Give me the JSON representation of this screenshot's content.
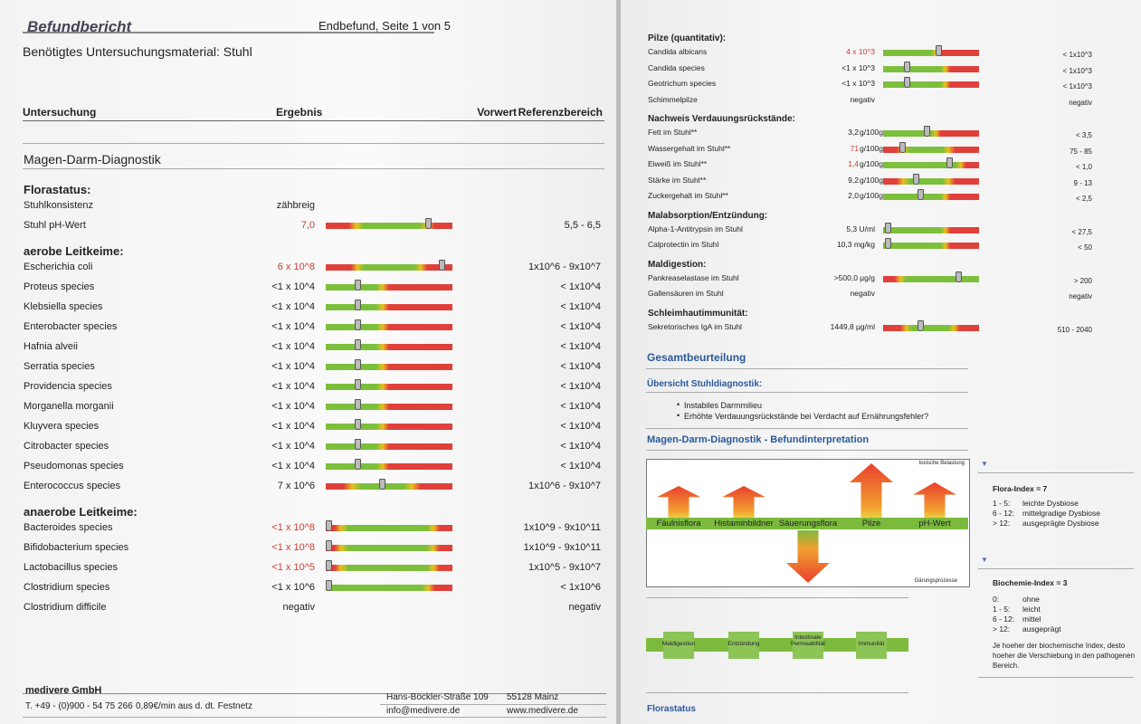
{
  "page1": {
    "header": {
      "title": "Befundbericht",
      "page": "Endbefund, Seite 1 von 5"
    },
    "material": "Benötigtes Untersuchungsmaterial: Stuhl",
    "columns": [
      "Untersuchung",
      "Ergebnis",
      "Vorwert",
      "Referenzbereich"
    ],
    "section": "Magen-Darm-Diagnostik",
    "groups": [
      {
        "title": "Florastatus:",
        "rows": [
          {
            "name": "Stuhlkonsistenz",
            "result": "zähbreig"
          },
          {
            "name": "Stuhl pH-Wert",
            "result": "7,0",
            "flag": true,
            "reference": "5,5 - 6,5"
          }
        ]
      },
      {
        "title": "aerobe Leitkeime:",
        "rows": [
          {
            "name": "Escherichia coli",
            "result": "6 x 10^8",
            "flag": true,
            "reference": "1x10^6 - 9x10^7"
          },
          {
            "name": "Proteus species",
            "result": "<1 x 10^4",
            "reference": "< 1x10^4"
          },
          {
            "name": "Klebsiella species",
            "result": "<1 x 10^4",
            "reference": "< 1x10^4"
          },
          {
            "name": "Enterobacter species",
            "result": "<1 x 10^4",
            "reference": "< 1x10^4"
          },
          {
            "name": "Hafnia alveii",
            "result": "<1 x 10^4",
            "reference": "< 1x10^4"
          },
          {
            "name": "Serratia species",
            "result": "<1 x 10^4",
            "reference": "< 1x10^4"
          },
          {
            "name": "Providencia species",
            "result": "<1 x 10^4",
            "reference": "< 1x10^4"
          },
          {
            "name": "Morganella morganii",
            "result": "<1 x 10^4",
            "reference": "< 1x10^4"
          },
          {
            "name": "Kluyvera species",
            "result": "<1 x 10^4",
            "reference": "< 1x10^4"
          },
          {
            "name": "Citrobacter species",
            "result": "<1 x 10^4",
            "reference": "< 1x10^4"
          },
          {
            "name": "Pseudomonas species",
            "result": "<1 x 10^4",
            "reference": "< 1x10^4"
          },
          {
            "name": "Enterococcus species",
            "result": "7 x 10^6",
            "reference": "1x10^6 - 9x10^7"
          }
        ]
      },
      {
        "title": "anaerobe Leitkeime:",
        "rows": [
          {
            "name": "Bacteroides species",
            "result": "<1 x 10^8",
            "flag": true,
            "reference": "1x10^9 - 9x10^11"
          },
          {
            "name": "Bifidobacterium species",
            "result": "<1 x 10^8",
            "flag": true,
            "reference": "1x10^9 - 9x10^11"
          },
          {
            "name": "Lactobacillus species",
            "result": "<1 x 10^5",
            "flag": true,
            "reference": "1x10^5 - 9x10^7"
          },
          {
            "name": "Clostridium species",
            "result": "<1 x 10^6",
            "reference": "< 1x10^6"
          },
          {
            "name": "Clostridium difficile",
            "result": "negativ",
            "reference": "negativ"
          }
        ]
      }
    ],
    "footer": {
      "company": "medivere GmbH",
      "phone": "T. +49 - (0)900 - 54 75 266",
      "rate": "0,89€/min aus d. dt. Festnetz",
      "street": "Hans-Böckler-Straße 109",
      "city": "55128 Mainz",
      "email": "info@medivere.de",
      "web": "www.medivere.de"
    }
  },
  "page2": {
    "groups": [
      {
        "title": "Pilze (quantitativ):",
        "rows": [
          {
            "name": "Candida albicans",
            "result": "4 x 10^3",
            "flag": true,
            "reference": "< 1x10^3"
          },
          {
            "name": "Candida species",
            "result": "<1 x 10^3",
            "reference": "< 1x10^3"
          },
          {
            "name": "Geotrichum species",
            "result": "<1 x 10^3",
            "reference": "< 1x10^3"
          },
          {
            "name": "Schimmelpilze",
            "result": "negativ",
            "reference": "negativ"
          }
        ]
      },
      {
        "title": "Nachweis Verdauungsrückstände:",
        "rows": [
          {
            "name": "Fett im Stuhl**",
            "result": "3,2",
            "unit": "g/100g",
            "reference": "< 3,5"
          },
          {
            "name": "Wassergehalt im Stuhl**",
            "result": "71",
            "flag": true,
            "unit": "g/100g",
            "reference": "75 - 85"
          },
          {
            "name": "Eiweiß im Stuhl**",
            "result": "1,4",
            "flag": true,
            "unit": "g/100g",
            "reference": "< 1,0"
          },
          {
            "name": "Stärke im Stuhl**",
            "result": "9,2",
            "unit": "g/100g",
            "reference": "9 - 13"
          },
          {
            "name": "Zuckergehalt im Stuhl**",
            "result": "2,0",
            "unit": "g/100g",
            "reference": "< 2,5"
          }
        ]
      },
      {
        "title": "Malabsorption/Entzündung:",
        "rows": [
          {
            "name": "Alpha-1-Antitrypsin im Stuhl",
            "result": "5,3 U/ml",
            "reference": "< 27,5"
          },
          {
            "name": "Calprotectin im Stuhl",
            "result": "10,3 mg/kg",
            "reference": "< 50"
          }
        ]
      },
      {
        "title": "Maldigestion:",
        "rows": [
          {
            "name": "Pankreaselastase im Stuhl",
            "result": ">500,0 µg/g",
            "reference": "> 200"
          },
          {
            "name": "Gallensäuren im Stuhl",
            "result": "negativ",
            "reference": "negativ"
          }
        ]
      },
      {
        "title": "Schleimhautimmunität:",
        "rows": [
          {
            "name": "Sekretorisches IgA im Stuhl",
            "result": "1449,8 µg/ml",
            "reference": "510 - 2040"
          }
        ]
      }
    ],
    "gesamt": "Gesamtbeurteilung",
    "uebersicht": "Übersicht Stuhldiagnostik:",
    "bullets": [
      "Instabiles Darmmilieu",
      "Erhöhte Verdauungsrückstände bei Verdacht auf Ernährungsfehler?"
    ],
    "interpretation": "Magen-Darm-Diagnostik - Befundinterpretation",
    "diagram": {
      "top_note": "toxische Belastung",
      "bottom_note": "Gärungsprozesse",
      "flora": [
        "Fäulnisflora",
        "Histaminbildner",
        "Säuerungsflora",
        "Pilze",
        "pH-Wert"
      ],
      "lower": [
        "Maldigestion",
        "Entzündung",
        "Intestinale Permeabilität",
        "Immunität"
      ]
    },
    "flora_index": {
      "title": "Flora-Index = 7",
      "scale": [
        [
          "1 - 5:",
          "leichte Dysbiose"
        ],
        [
          "6 - 12:",
          "mittelgradige Dysbiose"
        ],
        [
          "> 12:",
          "ausgeprägte Dysbiose"
        ]
      ]
    },
    "biochemie_index": {
      "title": "Biochemie-Index = 3",
      "scale": [
        [
          "0:",
          "ohne"
        ],
        [
          "1 - 5:",
          "leicht"
        ],
        [
          "6 - 12:",
          "mittel"
        ],
        [
          "> 12:",
          "ausgeprägt"
        ]
      ],
      "note": "Je hoeher der biochemische Index, desto hoeher die Verschiebung in den pathogenen Bereich."
    },
    "florastatus": "Florastatus"
  }
}
